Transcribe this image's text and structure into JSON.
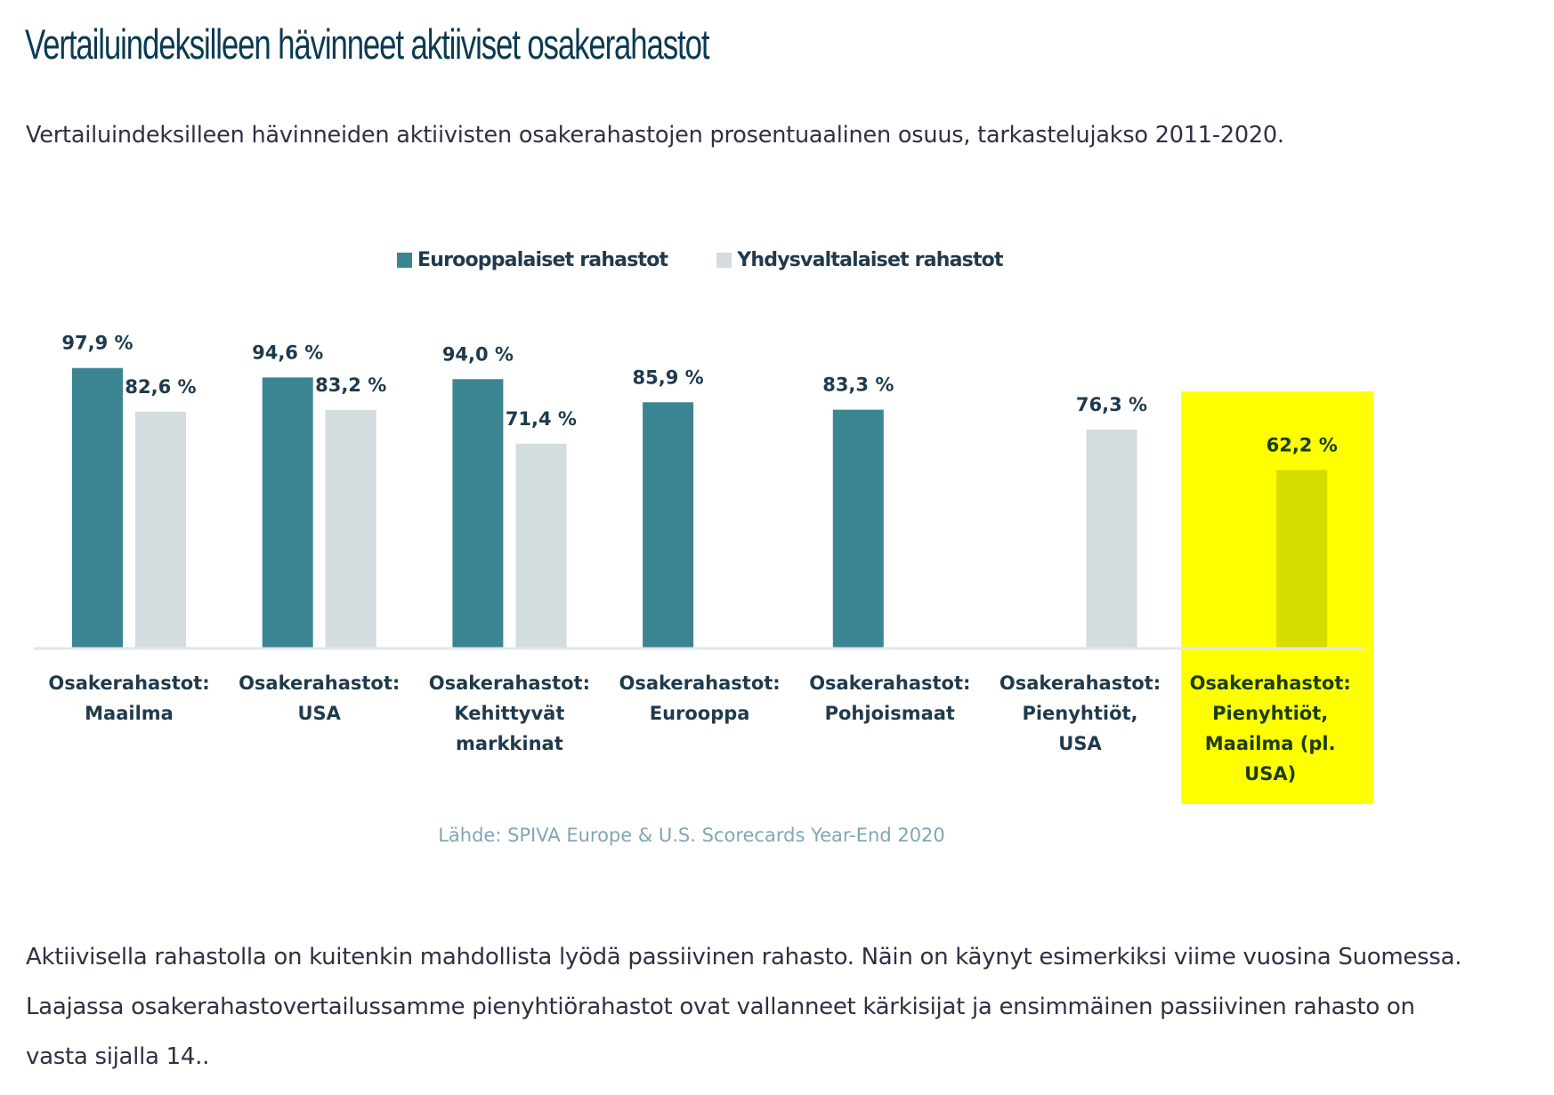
{
  "article": {
    "heading": "Vertailuindeksilleen hävinneet aktiiviset osakerahastot",
    "subtitle": "Vertailuindeksilleen hävinneiden aktiivisten osakerahastojen prosentuaalinen osuus, tarkastelujakso 2011-2020.",
    "paragraph_lines": [
      "Aktiivisella rahastolla on kuitenkin mahdollista lyödä passiivinen rahasto. Näin on käynyt esimerkiksi viime vuosina Suomessa.",
      "Laajassa osakerahastovertailussamme pienyhtiörahastot ovat vallanneet kärkisijat ja ensimmäinen passiivinen rahasto on",
      "vasta sijalla 14.."
    ]
  },
  "chart_data": {
    "type": "bar",
    "title": "",
    "xlabel": "",
    "ylabel": "",
    "ylim": [
      0,
      100
    ],
    "grid": false,
    "legend_position": "top-center",
    "categories": [
      [
        "Osakerahastot:",
        "Maailma"
      ],
      [
        "Osakerahastot:",
        "USA"
      ],
      [
        "Osakerahastot:",
        "Kehittyvät",
        "markkinat"
      ],
      [
        "Osakerahastot:",
        "Eurooppa"
      ],
      [
        "Osakerahastot:",
        "Pohjoismaat"
      ],
      [
        "Osakerahastot:",
        "Pienyhtiöt,",
        "USA"
      ],
      [
        "Osakerahastot:",
        "Pienyhtiöt,",
        "Maailma (pl.",
        "USA)"
      ]
    ],
    "series": [
      {
        "name": "Eurooppalaiset rahastot",
        "color": "#3b8593",
        "values": [
          97.9,
          94.6,
          94.0,
          85.9,
          83.3,
          null,
          null
        ],
        "labels": [
          "97,9 %",
          "94,6 %",
          "94,0 %",
          "85,9 %",
          "83,3 %",
          null,
          null
        ]
      },
      {
        "name": "Yhdysvaltalaiset rahastot",
        "color": "#d3dcdf",
        "values": [
          82.6,
          83.2,
          71.4,
          null,
          null,
          76.3,
          62.2
        ],
        "labels": [
          "82,6 %",
          "83,2 %",
          "71,4 %",
          null,
          null,
          "76,3 %",
          "62,2 %"
        ]
      }
    ],
    "highlight": {
      "category_index": 6,
      "color": "#ffff00",
      "bar_color": "#d6db00",
      "text_color": "#1a3d10"
    },
    "source": "Lähde: SPIVA Europe & U.S. Scorecards Year-End 2020",
    "colors": {
      "label_text": "#1f3a4d",
      "axis": "#dfe7ea",
      "source_text": "#7fa6b8"
    }
  }
}
